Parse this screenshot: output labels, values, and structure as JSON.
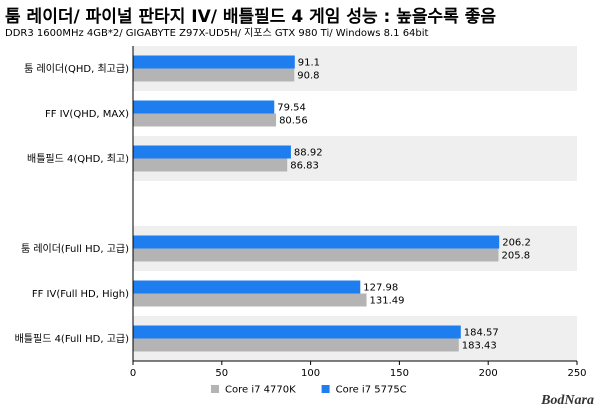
{
  "chart_data": {
    "type": "bar",
    "orientation": "horizontal",
    "title": "툼 레이더/ 파이널 판타지 IV/ 배틀필드 4 게임 성능 : 높을수록 좋음",
    "subtitle": "DDR3 1600MHz 4GB*2/ GIGABYTE Z97X-UD5H/ 지포스 GTX 980 Ti/ Windows 8.1 64bit",
    "categories": [
      "툼 레이더(QHD, 최고급)",
      "FF IV(QHD, MAX)",
      "배틀필드 4(QHD, 최고)",
      "",
      "툼 레이더(Full HD, 고급)",
      "FF IV(Full HD, High)",
      "배틀필드 4(Full HD, 고급)"
    ],
    "series": [
      {
        "name": "Core i7 5775C",
        "values": [
          91.1,
          79.54,
          88.92,
          null,
          206.2,
          127.98,
          184.57
        ],
        "labels": [
          "91.1",
          "79.54",
          "88.92",
          "",
          "206.2",
          "127.98",
          "184.57"
        ]
      },
      {
        "name": "Core i7 4770K",
        "values": [
          90.8,
          80.56,
          86.83,
          null,
          205.8,
          131.49,
          183.43
        ],
        "labels": [
          "90.8",
          "80.56",
          "86.83",
          "",
          "205.8",
          "131.49",
          "183.43"
        ]
      }
    ],
    "xlim": [
      0,
      250
    ],
    "ticks": [
      "0",
      "50",
      "100",
      "150",
      "200",
      "250"
    ],
    "legend_order": [
      "Core i7 4770K",
      "Core i7 5775C"
    ],
    "legend_position": "bottom",
    "colors": {
      "Core i7 5775C": "#1e7ef0",
      "Core i7 4770K": "#b4b4b4",
      "band": "#efefef"
    },
    "logo_text": "BodNara"
  }
}
